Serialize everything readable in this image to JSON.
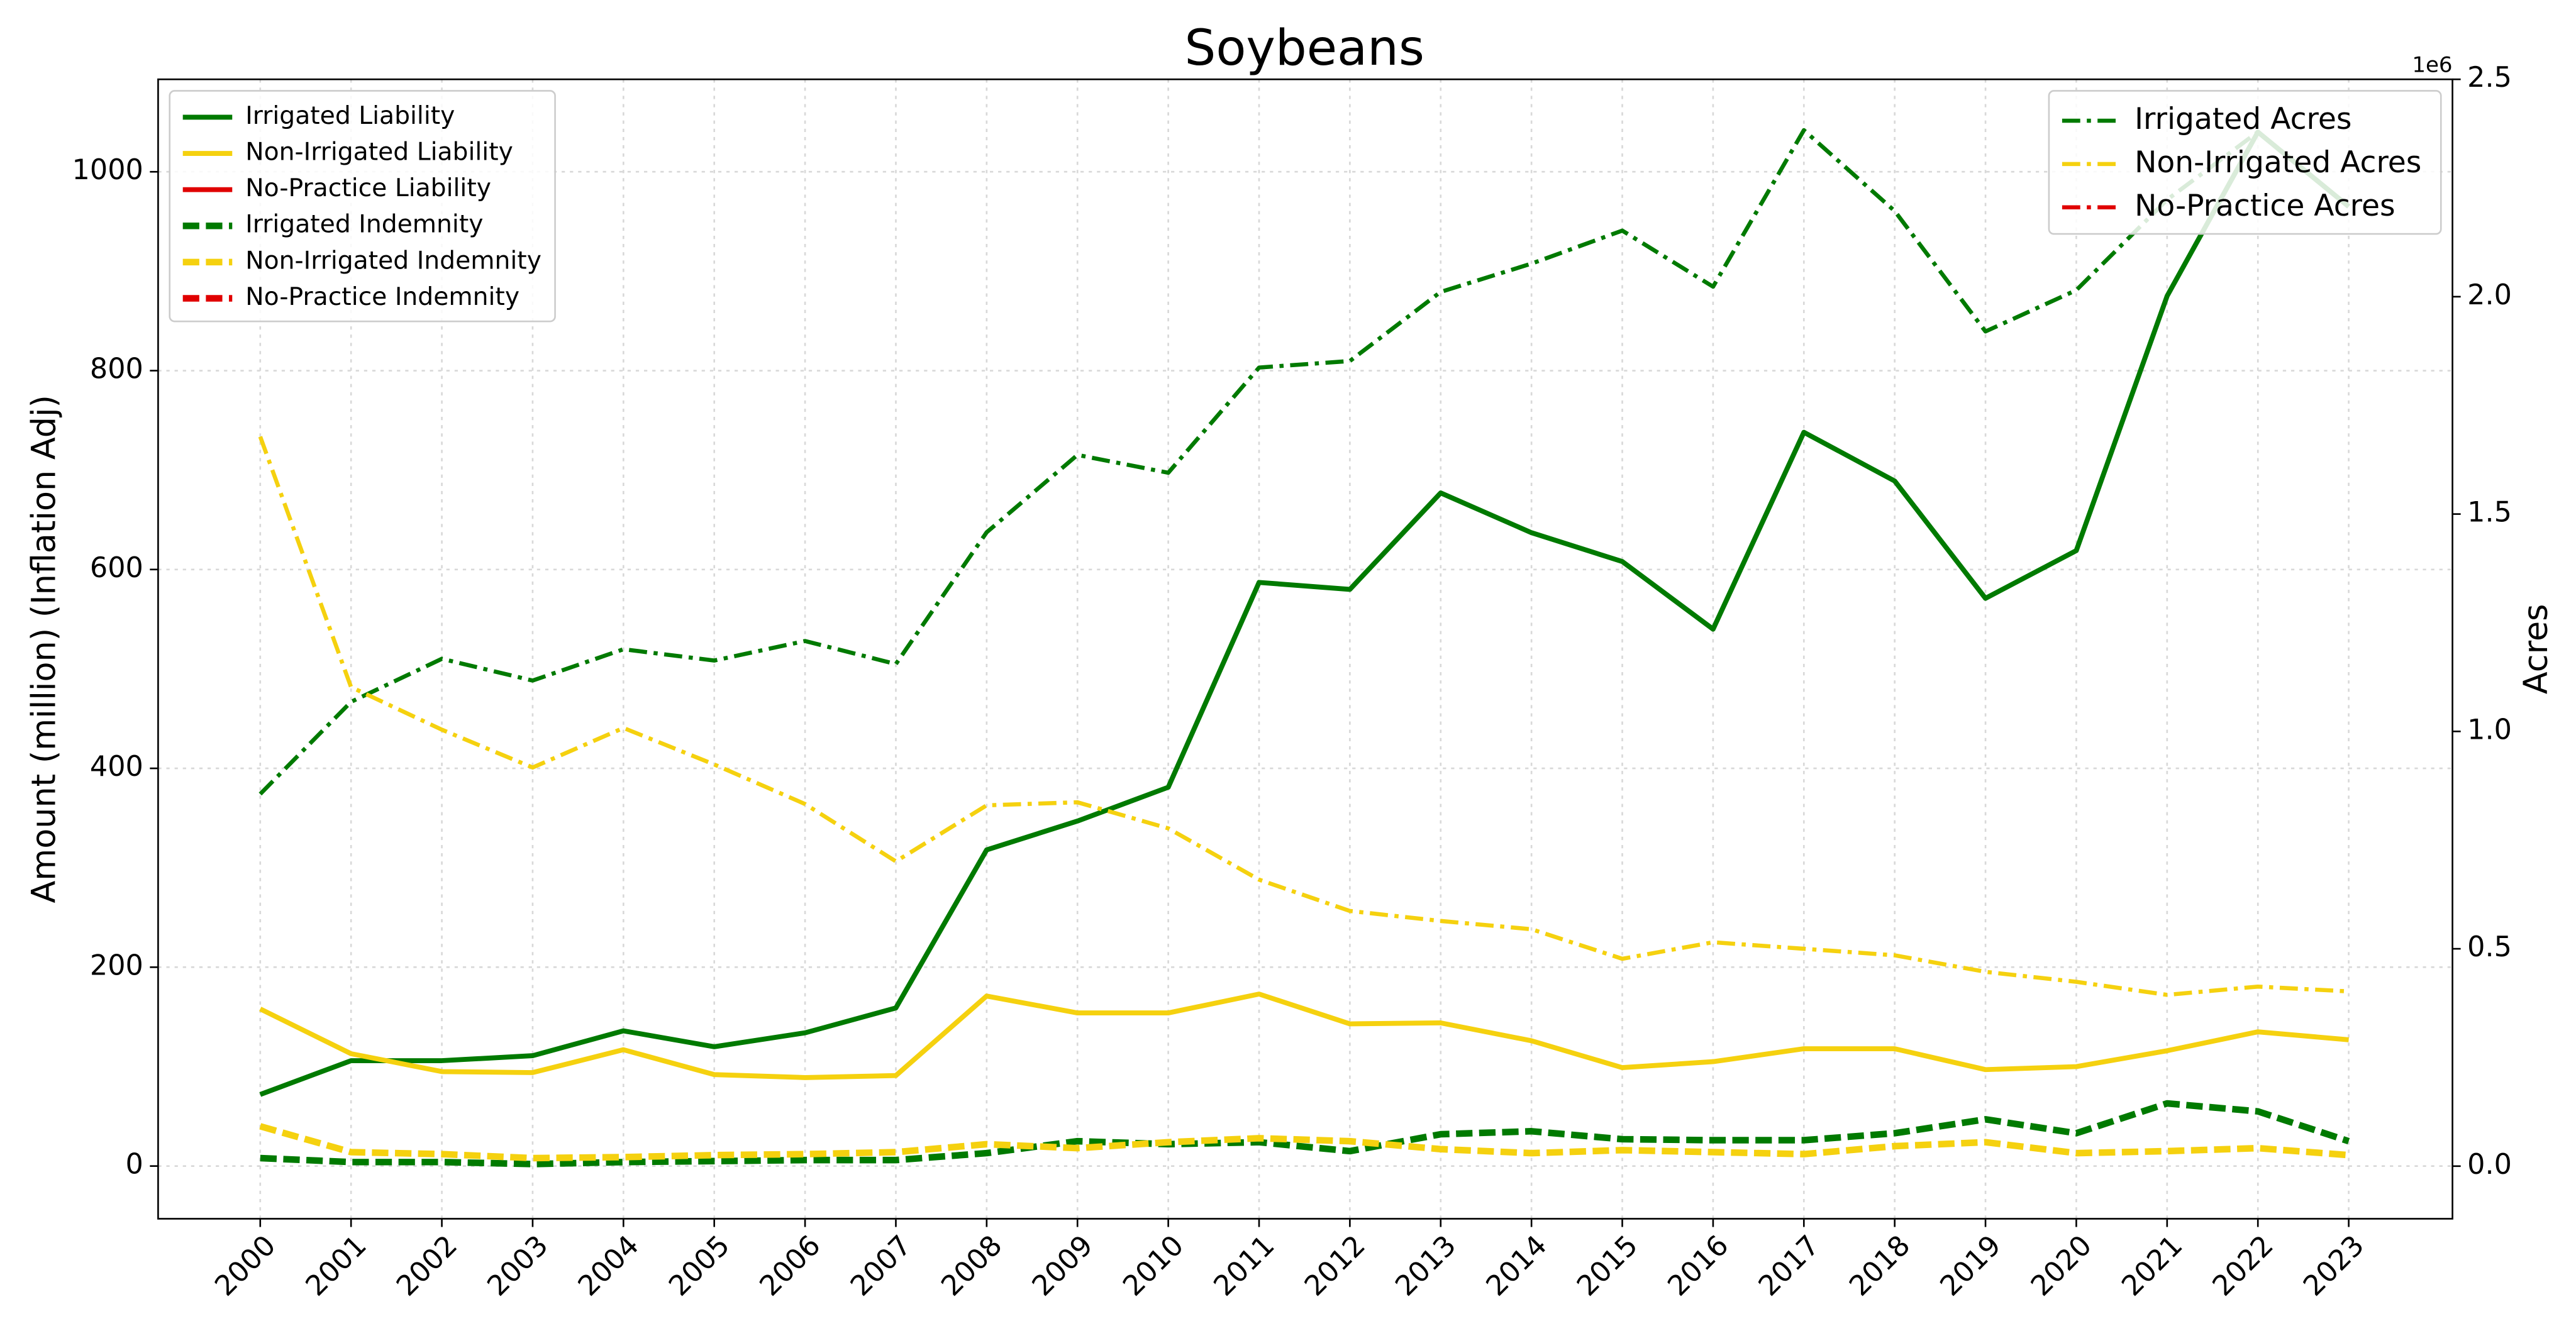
{
  "chart_data": {
    "type": "line",
    "title": "Soybeans",
    "ylabel": "Amount (million) (Inflation Adj)",
    "y2label": "Acres",
    "y2_offset_text": "1e6",
    "categories": [
      "2000",
      "2001",
      "2002",
      "2003",
      "2004",
      "2005",
      "2006",
      "2007",
      "2008",
      "2009",
      "2010",
      "2011",
      "2012",
      "2013",
      "2014",
      "2015",
      "2016",
      "2017",
      "2018",
      "2019",
      "2020",
      "2021",
      "2022",
      "2023"
    ],
    "ylim": [
      -53,
      1093
    ],
    "yticks": [
      0,
      200,
      400,
      600,
      800,
      1000
    ],
    "y2lim": [
      -121000,
      2500000
    ],
    "y2ticks": [
      {
        "value": 0,
        "label": "0.0"
      },
      {
        "value": 500000,
        "label": "0.5"
      },
      {
        "value": 1000000,
        "label": "1.0"
      },
      {
        "value": 1500000,
        "label": "1.5"
      },
      {
        "value": 2000000,
        "label": "2.0"
      },
      {
        "value": 2500000,
        "label": "2.5"
      }
    ],
    "grid": true,
    "legend_loc": "upper left",
    "legend2_loc": "upper right",
    "series": [
      {
        "name": "Irrigated Liability",
        "color": "#007a00",
        "style": "solid",
        "axis": "y",
        "values": [
          72,
          106,
          106,
          111,
          136,
          120,
          134,
          159,
          318,
          347,
          381,
          587,
          580,
          677,
          637,
          608,
          540,
          738,
          689,
          571,
          619,
          875,
          1040,
          965
        ]
      },
      {
        "name": "Non-Irrigated Liability",
        "color": "#f5d10f",
        "style": "solid",
        "axis": "y",
        "values": [
          158,
          113,
          95,
          94,
          117,
          92,
          89,
          91,
          171,
          154,
          154,
          173,
          143,
          144,
          126,
          99,
          105,
          118,
          118,
          97,
          100,
          116,
          135,
          127
        ]
      },
      {
        "name": "No-Practice Liability",
        "color": "#e00000",
        "style": "solid",
        "axis": "y",
        "values": [
          null,
          null,
          null,
          null,
          null,
          null,
          null,
          null,
          null,
          null,
          null,
          null,
          null,
          null,
          null,
          null,
          null,
          null,
          null,
          null,
          null,
          null,
          null,
          null
        ]
      },
      {
        "name": "Irrigated Indemnity",
        "color": "#007a00",
        "style": "dashed",
        "axis": "y",
        "values": [
          8,
          4,
          4,
          2,
          4,
          5,
          6,
          6,
          13,
          25,
          22,
          24,
          15,
          32,
          35,
          27,
          26,
          26,
          33,
          47,
          33,
          63,
          55,
          25
        ]
      },
      {
        "name": "Non-Irrigated Indemnity",
        "color": "#f5d10f",
        "style": "dashed",
        "axis": "y",
        "values": [
          40,
          14,
          12,
          8,
          9,
          11,
          12,
          14,
          22,
          18,
          24,
          28,
          25,
          17,
          13,
          16,
          14,
          12,
          20,
          24,
          13,
          15,
          18,
          11
        ]
      },
      {
        "name": "No-Practice Indemnity",
        "color": "#e00000",
        "style": "dashed",
        "axis": "y",
        "values": [
          null,
          null,
          null,
          null,
          null,
          null,
          null,
          null,
          null,
          null,
          null,
          null,
          null,
          null,
          null,
          null,
          null,
          null,
          null,
          null,
          null,
          null,
          null,
          null
        ]
      },
      {
        "name": "Irrigated Acres",
        "color": "#007a00",
        "style": "dashdot",
        "axis": "y2",
        "values": [
          856000,
          1068000,
          1167000,
          1117000,
          1189000,
          1163000,
          1208000,
          1155000,
          1458000,
          1636000,
          1595000,
          1837000,
          1852000,
          2011000,
          2076000,
          2152000,
          2023000,
          2383000,
          2197000,
          1920000,
          2015000,
          2223000,
          2379000,
          2208000
        ]
      },
      {
        "name": "Non-Irrigated Acres",
        "color": "#f5d10f",
        "style": "dashdot",
        "axis": "y2",
        "values": [
          1678000,
          1102000,
          1004000,
          917000,
          1008000,
          924000,
          833000,
          701000,
          830000,
          837000,
          777000,
          659000,
          587000,
          564000,
          545000,
          477000,
          515000,
          500000,
          485000,
          447000,
          424000,
          394000,
          413000,
          402000
        ]
      },
      {
        "name": "No-Practice Acres",
        "color": "#e00000",
        "style": "dashdot",
        "axis": "y2",
        "values": [
          null,
          null,
          null,
          null,
          null,
          null,
          null,
          null,
          null,
          null,
          null,
          null,
          null,
          null,
          null,
          null,
          null,
          null,
          null,
          null,
          null,
          null,
          null,
          null
        ]
      }
    ]
  }
}
